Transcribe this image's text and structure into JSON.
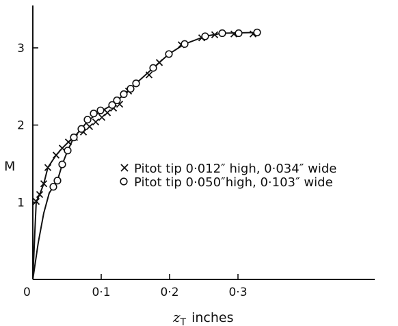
{
  "chart_data": {
    "type": "scatter",
    "title": "",
    "xlabel": "z_T inches",
    "xlabel_main": "z",
    "xlabel_sub": "T",
    "xlabel_unit": "inches",
    "ylabel": "M",
    "xlim": [
      0,
      0.35
    ],
    "ylim": [
      0,
      3.4
    ],
    "origin_label": "0",
    "x_ticks": [
      {
        "value": 0.1,
        "label": "0·1"
      },
      {
        "value": 0.2,
        "label": "0·2"
      },
      {
        "value": 0.3,
        "label": "0·3"
      }
    ],
    "y_ticks": [
      {
        "value": 1,
        "label": "1"
      },
      {
        "value": 2,
        "label": "2"
      },
      {
        "value": 3,
        "label": "3"
      }
    ],
    "grid": false,
    "legend_position": "center-right",
    "series": [
      {
        "name": "Pitot tip 0·012″ high, 0·034″ wide",
        "marker": "x",
        "points": [
          [
            0.005,
            1.01
          ],
          [
            0.01,
            1.1
          ],
          [
            0.016,
            1.24
          ],
          [
            0.022,
            1.45
          ],
          [
            0.034,
            1.61
          ],
          [
            0.043,
            1.7
          ],
          [
            0.052,
            1.78
          ],
          [
            0.061,
            1.84
          ],
          [
            0.074,
            1.91
          ],
          [
            0.083,
            1.98
          ],
          [
            0.092,
            2.04
          ],
          [
            0.101,
            2.1
          ],
          [
            0.109,
            2.16
          ],
          [
            0.118,
            2.22
          ],
          [
            0.127,
            2.27
          ],
          [
            0.14,
            2.44
          ],
          [
            0.17,
            2.65
          ],
          [
            0.185,
            2.81
          ],
          [
            0.217,
            3.04
          ],
          [
            0.247,
            3.13
          ],
          [
            0.266,
            3.17
          ],
          [
            0.294,
            3.18
          ],
          [
            0.322,
            3.18
          ]
        ]
      },
      {
        "name": "Pitot tip 0·050″high, 0·103″ wide",
        "marker": "o",
        "points": [
          [
            0.03,
            1.2
          ],
          [
            0.036,
            1.28
          ],
          [
            0.043,
            1.49
          ],
          [
            0.051,
            1.67
          ],
          [
            0.06,
            1.84
          ],
          [
            0.071,
            1.95
          ],
          [
            0.08,
            2.07
          ],
          [
            0.089,
            2.15
          ],
          [
            0.099,
            2.19
          ],
          [
            0.116,
            2.26
          ],
          [
            0.123,
            2.32
          ],
          [
            0.133,
            2.4
          ],
          [
            0.143,
            2.47
          ],
          [
            0.151,
            2.54
          ],
          [
            0.176,
            2.74
          ],
          [
            0.199,
            2.92
          ],
          [
            0.222,
            3.05
          ],
          [
            0.252,
            3.15
          ],
          [
            0.277,
            3.19
          ],
          [
            0.301,
            3.19
          ],
          [
            0.328,
            3.2
          ]
        ]
      }
    ],
    "curves": [
      {
        "name": "lower-branch",
        "points": [
          [
            0,
            0
          ],
          [
            0.008,
            0.48
          ],
          [
            0.016,
            0.86
          ],
          [
            0.024,
            1.12
          ],
          [
            0.03,
            1.2
          ],
          [
            0.036,
            1.28
          ],
          [
            0.043,
            1.49
          ],
          [
            0.051,
            1.67
          ],
          [
            0.06,
            1.84
          ],
          [
            0.071,
            1.95
          ],
          [
            0.08,
            2.05
          ],
          [
            0.09,
            2.12
          ],
          [
            0.1,
            2.18
          ],
          [
            0.116,
            2.26
          ],
          [
            0.13,
            2.37
          ],
          [
            0.151,
            2.54
          ],
          [
            0.176,
            2.74
          ],
          [
            0.199,
            2.92
          ],
          [
            0.222,
            3.05
          ],
          [
            0.252,
            3.15
          ],
          [
            0.277,
            3.19
          ],
          [
            0.328,
            3.2
          ]
        ]
      },
      {
        "name": "upper-branch",
        "points": [
          [
            0,
            0
          ],
          [
            0.003,
            0.62
          ],
          [
            0.005,
            1.01
          ],
          [
            0.01,
            1.1
          ],
          [
            0.016,
            1.24
          ],
          [
            0.022,
            1.45
          ],
          [
            0.034,
            1.61
          ],
          [
            0.043,
            1.7
          ],
          [
            0.052,
            1.78
          ],
          [
            0.061,
            1.84
          ]
        ]
      }
    ]
  }
}
